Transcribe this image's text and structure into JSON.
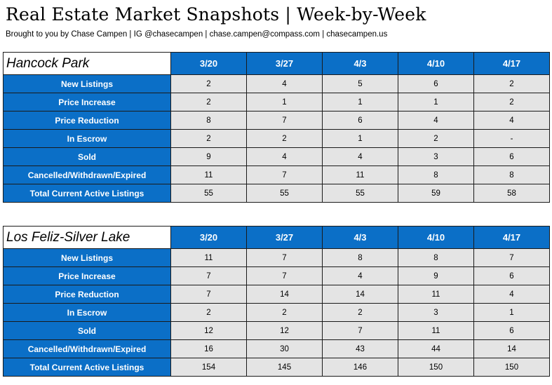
{
  "title": "Real Estate Market Snapshots | Week-by-Week",
  "subtitle": "Brought to you by Chase Campen | IG @chasecampen | chase.campen@compass.com | chasecampen.us",
  "colors": {
    "header_blue": "#0b6fc7",
    "cell_gray": "#e4e4e4"
  },
  "tables": [
    {
      "area": "Hancock Park",
      "weeks": [
        "3/20",
        "3/27",
        "4/3",
        "4/10",
        "4/17"
      ],
      "rows": [
        {
          "label": "New Listings",
          "values": [
            "2",
            "4",
            "5",
            "6",
            "2"
          ]
        },
        {
          "label": "Price Increase",
          "values": [
            "2",
            "1",
            "1",
            "1",
            "2"
          ]
        },
        {
          "label": "Price Reduction",
          "values": [
            "8",
            "7",
            "6",
            "4",
            "4"
          ]
        },
        {
          "label": "In Escrow",
          "values": [
            "2",
            "2",
            "1",
            "2",
            "-"
          ]
        },
        {
          "label": "Sold",
          "values": [
            "9",
            "4",
            "4",
            "3",
            "6"
          ]
        },
        {
          "label": "Cancelled/Withdrawn/Expired",
          "values": [
            "11",
            "7",
            "11",
            "8",
            "8"
          ]
        },
        {
          "label": "Total Current Active Listings",
          "values": [
            "55",
            "55",
            "55",
            "59",
            "58"
          ]
        }
      ]
    },
    {
      "area": "Los Feliz-Silver Lake",
      "weeks": [
        "3/20",
        "3/27",
        "4/3",
        "4/10",
        "4/17"
      ],
      "rows": [
        {
          "label": "New Listings",
          "values": [
            "11",
            "7",
            "8",
            "8",
            "7"
          ]
        },
        {
          "label": "Price Increase",
          "values": [
            "7",
            "7",
            "4",
            "9",
            "6"
          ]
        },
        {
          "label": "Price Reduction",
          "values": [
            "7",
            "14",
            "14",
            "11",
            "4"
          ]
        },
        {
          "label": "In Escrow",
          "values": [
            "2",
            "2",
            "2",
            "3",
            "1"
          ]
        },
        {
          "label": "Sold",
          "values": [
            "12",
            "12",
            "7",
            "11",
            "6"
          ]
        },
        {
          "label": "Cancelled/Withdrawn/Expired",
          "values": [
            "16",
            "30",
            "43",
            "44",
            "14"
          ]
        },
        {
          "label": "Total Current Active Listings",
          "values": [
            "154",
            "145",
            "146",
            "150",
            "150"
          ]
        }
      ]
    }
  ]
}
